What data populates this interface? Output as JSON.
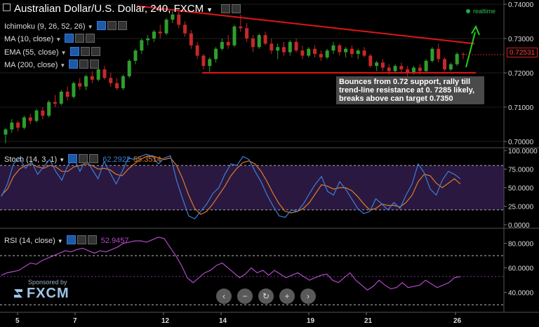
{
  "header": {
    "title": "Australian Dollar/U.S. Dollar, 240, FXCM",
    "dropdown_icon": "chevron-down-icon",
    "realtime": "realtime"
  },
  "indicators": [
    {
      "label": "Ichimoku (9, 26, 52, 26)"
    },
    {
      "label": "MA (10, close)"
    },
    {
      "label": "EMA (55, close)"
    },
    {
      "label": "MA (200, close)"
    }
  ],
  "annotation": "Bounces from 0.72 support, rally till trend-line resistance at 0. 7285 likely, breaks above can target 0.7350",
  "price_tag": "0.72531",
  "stoch": {
    "label": "Stoch (14, 3, 1)",
    "k_value": "62.2922",
    "d_value": "55.3514"
  },
  "rsi": {
    "label": "RSI (14, close)",
    "value": "52.9457"
  },
  "sponsor": {
    "line1": "Sponsored by",
    "brand": "FXCM"
  },
  "nav_icons": [
    "chevron-left-icon",
    "minus-icon",
    "reset-icon",
    "plus-icon",
    "chevron-right-icon"
  ],
  "colors": {
    "up": "#2e9e2e",
    "down": "#c62828",
    "trendline": "#e01515",
    "arrow": "#1fd11f",
    "stoch_k": "#3d7fd6",
    "stoch_d": "#e07b2a",
    "stoch_band": "#2a1840",
    "rsi": "#b04ac8"
  },
  "chart_data": [
    {
      "type": "candlestick",
      "name": "price",
      "yticks": [
        "0.74000",
        "0.73000",
        "0.72000",
        "0.71000",
        "0.70000"
      ],
      "ylim": [
        0.7,
        0.74
      ],
      "xticks": [
        "5",
        "7",
        "12",
        "14",
        "19",
        "21",
        "26"
      ],
      "candles": [
        {
          "o": 0.702,
          "h": 0.704,
          "l": 0.6995,
          "c": 0.7035
        },
        {
          "o": 0.7035,
          "h": 0.7065,
          "l": 0.7025,
          "c": 0.7055
        },
        {
          "o": 0.7055,
          "h": 0.706,
          "l": 0.703,
          "c": 0.704
        },
        {
          "o": 0.704,
          "h": 0.7075,
          "l": 0.7035,
          "c": 0.707
        },
        {
          "o": 0.707,
          "h": 0.708,
          "l": 0.705,
          "c": 0.706
        },
        {
          "o": 0.706,
          "h": 0.7095,
          "l": 0.7055,
          "c": 0.709
        },
        {
          "o": 0.709,
          "h": 0.71,
          "l": 0.7065,
          "c": 0.7075
        },
        {
          "o": 0.7075,
          "h": 0.712,
          "l": 0.707,
          "c": 0.7115
        },
        {
          "o": 0.7115,
          "h": 0.7135,
          "l": 0.71,
          "c": 0.711
        },
        {
          "o": 0.711,
          "h": 0.715,
          "l": 0.7105,
          "c": 0.7145
        },
        {
          "o": 0.7145,
          "h": 0.716,
          "l": 0.712,
          "c": 0.713
        },
        {
          "o": 0.713,
          "h": 0.7175,
          "l": 0.7125,
          "c": 0.717
        },
        {
          "o": 0.717,
          "h": 0.7185,
          "l": 0.715,
          "c": 0.716
        },
        {
          "o": 0.716,
          "h": 0.7195,
          "l": 0.715,
          "c": 0.719
        },
        {
          "o": 0.719,
          "h": 0.7205,
          "l": 0.717,
          "c": 0.718
        },
        {
          "o": 0.718,
          "h": 0.7215,
          "l": 0.7175,
          "c": 0.721
        },
        {
          "o": 0.721,
          "h": 0.722,
          "l": 0.718,
          "c": 0.7185
        },
        {
          "o": 0.7185,
          "h": 0.72,
          "l": 0.716,
          "c": 0.717
        },
        {
          "o": 0.717,
          "h": 0.7185,
          "l": 0.715,
          "c": 0.7155
        },
        {
          "o": 0.7155,
          "h": 0.7195,
          "l": 0.715,
          "c": 0.719
        },
        {
          "o": 0.719,
          "h": 0.724,
          "l": 0.7185,
          "c": 0.7235
        },
        {
          "o": 0.7235,
          "h": 0.727,
          "l": 0.7225,
          "c": 0.7265
        },
        {
          "o": 0.7265,
          "h": 0.73,
          "l": 0.7255,
          "c": 0.7295
        },
        {
          "o": 0.7295,
          "h": 0.731,
          "l": 0.728,
          "c": 0.73
        },
        {
          "o": 0.73,
          "h": 0.7325,
          "l": 0.729,
          "c": 0.732
        },
        {
          "o": 0.732,
          "h": 0.734,
          "l": 0.73,
          "c": 0.7315
        },
        {
          "o": 0.7315,
          "h": 0.736,
          "l": 0.731,
          "c": 0.7355
        },
        {
          "o": 0.7355,
          "h": 0.738,
          "l": 0.7345,
          "c": 0.737
        },
        {
          "o": 0.737,
          "h": 0.7385,
          "l": 0.733,
          "c": 0.734
        },
        {
          "o": 0.734,
          "h": 0.735,
          "l": 0.7305,
          "c": 0.7315
        },
        {
          "o": 0.7315,
          "h": 0.7325,
          "l": 0.727,
          "c": 0.728
        },
        {
          "o": 0.728,
          "h": 0.729,
          "l": 0.724,
          "c": 0.725
        },
        {
          "o": 0.725,
          "h": 0.7255,
          "l": 0.721,
          "c": 0.722
        },
        {
          "o": 0.722,
          "h": 0.7245,
          "l": 0.72,
          "c": 0.724
        },
        {
          "o": 0.724,
          "h": 0.7275,
          "l": 0.723,
          "c": 0.727
        },
        {
          "o": 0.727,
          "h": 0.73,
          "l": 0.7265,
          "c": 0.729
        },
        {
          "o": 0.729,
          "h": 0.731,
          "l": 0.727,
          "c": 0.728
        },
        {
          "o": 0.728,
          "h": 0.734,
          "l": 0.7275,
          "c": 0.7335
        },
        {
          "o": 0.7335,
          "h": 0.737,
          "l": 0.732,
          "c": 0.733
        },
        {
          "o": 0.733,
          "h": 0.7345,
          "l": 0.729,
          "c": 0.73
        },
        {
          "o": 0.73,
          "h": 0.731,
          "l": 0.726,
          "c": 0.7275
        },
        {
          "o": 0.7275,
          "h": 0.7315,
          "l": 0.727,
          "c": 0.731
        },
        {
          "o": 0.731,
          "h": 0.732,
          "l": 0.728,
          "c": 0.7285
        },
        {
          "o": 0.7285,
          "h": 0.73,
          "l": 0.7255,
          "c": 0.7265
        },
        {
          "o": 0.7265,
          "h": 0.7285,
          "l": 0.724,
          "c": 0.7275
        },
        {
          "o": 0.7275,
          "h": 0.729,
          "l": 0.725,
          "c": 0.726
        },
        {
          "o": 0.726,
          "h": 0.7295,
          "l": 0.725,
          "c": 0.729
        },
        {
          "o": 0.729,
          "h": 0.73,
          "l": 0.726,
          "c": 0.7265
        },
        {
          "o": 0.7265,
          "h": 0.728,
          "l": 0.724,
          "c": 0.725
        },
        {
          "o": 0.725,
          "h": 0.7275,
          "l": 0.7245,
          "c": 0.727
        },
        {
          "o": 0.727,
          "h": 0.728,
          "l": 0.7245,
          "c": 0.7255
        },
        {
          "o": 0.7255,
          "h": 0.7265,
          "l": 0.7235,
          "c": 0.7245
        },
        {
          "o": 0.7245,
          "h": 0.727,
          "l": 0.724,
          "c": 0.7265
        },
        {
          "o": 0.7265,
          "h": 0.729,
          "l": 0.7255,
          "c": 0.728
        },
        {
          "o": 0.728,
          "h": 0.7285,
          "l": 0.725,
          "c": 0.726
        },
        {
          "o": 0.726,
          "h": 0.7275,
          "l": 0.7245,
          "c": 0.727
        },
        {
          "o": 0.727,
          "h": 0.728,
          "l": 0.7245,
          "c": 0.7255
        },
        {
          "o": 0.7255,
          "h": 0.727,
          "l": 0.724,
          "c": 0.7265
        },
        {
          "o": 0.7265,
          "h": 0.7275,
          "l": 0.7245,
          "c": 0.725
        },
        {
          "o": 0.725,
          "h": 0.7255,
          "l": 0.7215,
          "c": 0.722
        },
        {
          "o": 0.722,
          "h": 0.7235,
          "l": 0.7205,
          "c": 0.723
        },
        {
          "o": 0.723,
          "h": 0.724,
          "l": 0.7205,
          "c": 0.7215
        },
        {
          "o": 0.7215,
          "h": 0.7225,
          "l": 0.7195,
          "c": 0.7205
        },
        {
          "o": 0.7205,
          "h": 0.7225,
          "l": 0.72,
          "c": 0.722
        },
        {
          "o": 0.722,
          "h": 0.723,
          "l": 0.72,
          "c": 0.721
        },
        {
          "o": 0.721,
          "h": 0.722,
          "l": 0.719,
          "c": 0.72
        },
        {
          "o": 0.72,
          "h": 0.722,
          "l": 0.7195,
          "c": 0.7215
        },
        {
          "o": 0.7215,
          "h": 0.7225,
          "l": 0.7195,
          "c": 0.7205
        },
        {
          "o": 0.7205,
          "h": 0.724,
          "l": 0.72,
          "c": 0.7235
        },
        {
          "o": 0.7235,
          "h": 0.7275,
          "l": 0.723,
          "c": 0.727
        },
        {
          "o": 0.727,
          "h": 0.7285,
          "l": 0.723,
          "c": 0.724
        },
        {
          "o": 0.724,
          "h": 0.7245,
          "l": 0.7205,
          "c": 0.721
        },
        {
          "o": 0.721,
          "h": 0.723,
          "l": 0.7205,
          "c": 0.7225
        },
        {
          "o": 0.7225,
          "h": 0.726,
          "l": 0.722,
          "c": 0.7255
        },
        {
          "o": 0.7255,
          "h": 0.726,
          "l": 0.724,
          "c": 0.7253
        }
      ],
      "annotations": {
        "resistance_trendline": {
          "from": [
            0,
            0.7395
          ],
          "to": [
            1,
            0.7285
          ]
        },
        "support_line": 0.72
      }
    },
    {
      "type": "line",
      "name": "stochastic",
      "yticks": [
        "100.0000",
        "75.0000",
        "50.0000",
        "25.0000",
        "0.0000"
      ],
      "ylim": [
        0,
        100
      ],
      "band": [
        20,
        80
      ],
      "series": [
        {
          "values": [
            38,
            55,
            82,
            90,
            76,
            85,
            68,
            78,
            88,
            72,
            60,
            80,
            90,
            72,
            88,
            75,
            62,
            85,
            70,
            55,
            72,
            90,
            88,
            92,
            95,
            92,
            82,
            90,
            93,
            60,
            35,
            12,
            8,
            18,
            28,
            42,
            50,
            68,
            82,
            80,
            92,
            88,
            72,
            58,
            40,
            25,
            12,
            10,
            20,
            18,
            28,
            42,
            55,
            65,
            45,
            40,
            58,
            48,
            35,
            22,
            15,
            18,
            35,
            28,
            20,
            30,
            22,
            40,
            55,
            82,
            70,
            48,
            40,
            60,
            72,
            68,
            62
          ]
        },
        {
          "values": [
            40,
            48,
            65,
            75,
            80,
            82,
            78,
            76,
            80,
            78,
            72,
            72,
            78,
            80,
            82,
            80,
            75,
            76,
            74,
            68,
            66,
            75,
            82,
            88,
            92,
            93,
            90,
            88,
            90,
            80,
            62,
            40,
            22,
            14,
            18,
            28,
            40,
            52,
            66,
            76,
            84,
            86,
            82,
            72,
            58,
            42,
            28,
            18,
            16,
            18,
            22,
            30,
            42,
            54,
            52,
            48,
            50,
            50,
            46,
            38,
            28,
            20,
            22,
            28,
            26,
            26,
            24,
            30,
            40,
            58,
            68,
            66,
            56,
            50,
            56,
            62,
            55
          ]
        }
      ]
    },
    {
      "type": "line",
      "name": "rsi",
      "yticks": [
        "80.0000",
        "60.0000",
        "40.0000"
      ],
      "ylim": [
        25,
        90
      ],
      "levels": [
        70,
        30
      ],
      "series": [
        {
          "values": [
            54,
            56,
            57,
            58,
            61,
            64,
            63,
            66,
            68,
            70,
            72,
            74,
            73,
            75,
            76,
            74,
            72,
            74,
            73,
            75,
            77,
            80,
            81,
            82,
            82,
            81,
            83,
            85,
            84,
            77,
            70,
            62,
            52,
            48,
            52,
            56,
            58,
            62,
            64,
            60,
            56,
            52,
            55,
            60,
            56,
            58,
            54,
            58,
            55,
            52,
            54,
            56,
            53,
            50,
            52,
            54,
            55,
            50,
            48,
            52,
            56,
            50,
            46,
            42,
            45,
            50,
            46,
            43,
            44,
            48,
            44,
            45,
            46,
            50,
            47,
            44,
            46,
            48,
            52,
            53
          ]
        }
      ]
    }
  ]
}
